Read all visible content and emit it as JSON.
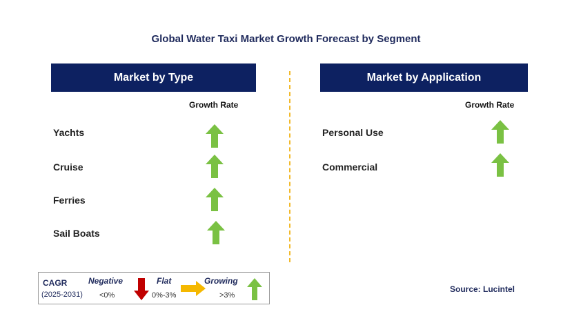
{
  "title": "Global Water Taxi Market Growth Forecast by Segment",
  "left_panel": {
    "header": "Market by Type",
    "growth_rate_label": "Growth Rate",
    "rows": [
      {
        "label": "Yachts",
        "trend": "growing"
      },
      {
        "label": "Cruise",
        "trend": "growing"
      },
      {
        "label": "Ferries",
        "trend": "growing"
      },
      {
        "label": "Sail Boats",
        "trend": "growing"
      }
    ]
  },
  "right_panel": {
    "header": "Market by Application",
    "growth_rate_label": "Growth Rate",
    "rows": [
      {
        "label": "Personal Use",
        "trend": "growing"
      },
      {
        "label": "Commercial",
        "trend": "growing"
      }
    ]
  },
  "legend": {
    "cagr_label": "CAGR",
    "period": "(2025-2031)",
    "negative": {
      "label": "Negative",
      "range": "<0%",
      "icon": "red-down-arrow-icon"
    },
    "flat": {
      "label": "Flat",
      "range": "0%-3%",
      "icon": "yellow-right-arrow-icon"
    },
    "growing": {
      "label": "Growing",
      "range": ">3%",
      "icon": "green-up-arrow-icon"
    }
  },
  "source": "Source: Lucintel",
  "colors": {
    "header_bg": "#0d2161",
    "title_text": "#1f2a5c",
    "growing_arrow": "#7ac143",
    "negative_arrow": "#c00000",
    "flat_arrow": "#f5b800",
    "divider": "#f2b92a"
  }
}
